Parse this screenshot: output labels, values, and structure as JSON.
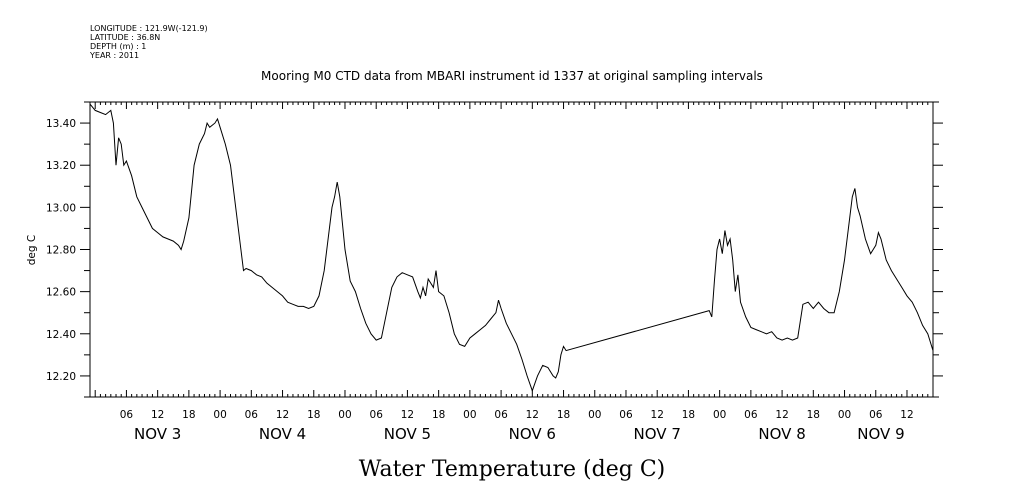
{
  "meta_lines": [
    "LONGITUDE : 121.9W(-121.9)",
    "LATITUDE : 36.8N",
    "DEPTH (m) : 1",
    "YEAR : 2011"
  ],
  "chart_data": {
    "type": "line",
    "title": "Mooring M0 CTD data from MBARI instrument id 1337 at original sampling intervals",
    "xlabel": "Water Temperature (deg C)",
    "ylabel": "deg C",
    "x_units": "hours since Nov 3 00:00, 2011",
    "xlim": [
      -1,
      161
    ],
    "ylim": [
      12.1,
      13.5
    ],
    "yticks": [
      12.2,
      12.4,
      12.6,
      12.8,
      13.0,
      13.2,
      13.4
    ],
    "ytick_labels": [
      "12.20",
      "12.40",
      "12.60",
      "12.80",
      "13.00",
      "13.20",
      "13.40"
    ],
    "xticks": [
      6,
      12,
      18,
      24,
      30,
      36,
      42,
      48,
      54,
      60,
      66,
      72,
      78,
      84,
      90,
      96,
      102,
      108,
      114,
      120,
      126,
      132,
      138,
      144,
      150,
      156
    ],
    "xtick_labels": [
      "06",
      "12",
      "18",
      "00",
      "06",
      "12",
      "18",
      "00",
      "06",
      "12",
      "18",
      "00",
      "06",
      "12",
      "18",
      "00",
      "06",
      "12",
      "18",
      "00",
      "06",
      "12",
      "18",
      "00",
      "06",
      "12"
    ],
    "day_labels": [
      {
        "text": "NOV  3",
        "x": 12
      },
      {
        "text": "NOV  4",
        "x": 36
      },
      {
        "text": "NOV  5",
        "x": 60
      },
      {
        "text": "NOV  6",
        "x": 84
      },
      {
        "text": "NOV  7",
        "x": 108
      },
      {
        "text": "NOV  8",
        "x": 132
      },
      {
        "text": "NOV  9",
        "x": 151
      }
    ],
    "series": [
      {
        "points": [
          [
            -1,
            13.49
          ],
          [
            0,
            13.46
          ],
          [
            1,
            13.45
          ],
          [
            2,
            13.44
          ],
          [
            3,
            13.46
          ],
          [
            3.5,
            13.4
          ],
          [
            4,
            13.2
          ],
          [
            4.5,
            13.33
          ],
          [
            5,
            13.3
          ],
          [
            5.5,
            13.2
          ],
          [
            6,
            13.22
          ],
          [
            7,
            13.15
          ],
          [
            8,
            13.05
          ],
          [
            9,
            13.0
          ],
          [
            10,
            12.95
          ],
          [
            11,
            12.9
          ],
          [
            12,
            12.88
          ],
          [
            13,
            12.86
          ],
          [
            14,
            12.85
          ],
          [
            15,
            12.84
          ],
          [
            16,
            12.82
          ],
          [
            16.5,
            12.8
          ],
          [
            17,
            12.84
          ],
          [
            18,
            12.95
          ],
          [
            19,
            13.2
          ],
          [
            20,
            13.3
          ],
          [
            21,
            13.35
          ],
          [
            21.5,
            13.4
          ],
          [
            22,
            13.38
          ],
          [
            23,
            13.4
          ],
          [
            23.5,
            13.42
          ],
          [
            24,
            13.38
          ],
          [
            25,
            13.3
          ],
          [
            26,
            13.2
          ],
          [
            27,
            13.0
          ],
          [
            28,
            12.8
          ],
          [
            28.5,
            12.7
          ],
          [
            29,
            12.71
          ],
          [
            30,
            12.7
          ],
          [
            31,
            12.68
          ],
          [
            32,
            12.67
          ],
          [
            33,
            12.64
          ],
          [
            34,
            12.62
          ],
          [
            35,
            12.6
          ],
          [
            36,
            12.58
          ],
          [
            37,
            12.55
          ],
          [
            38,
            12.54
          ],
          [
            39,
            12.53
          ],
          [
            40,
            12.53
          ],
          [
            41,
            12.52
          ],
          [
            42,
            12.53
          ],
          [
            43,
            12.58
          ],
          [
            44,
            12.7
          ],
          [
            45,
            12.9
          ],
          [
            45.5,
            13.0
          ],
          [
            46,
            13.05
          ],
          [
            46.5,
            13.12
          ],
          [
            47,
            13.05
          ],
          [
            48,
            12.8
          ],
          [
            49,
            12.65
          ],
          [
            50,
            12.6
          ],
          [
            51,
            12.52
          ],
          [
            52,
            12.45
          ],
          [
            53,
            12.4
          ],
          [
            54,
            12.37
          ],
          [
            55,
            12.38
          ],
          [
            56,
            12.5
          ],
          [
            57,
            12.62
          ],
          [
            58,
            12.67
          ],
          [
            59,
            12.69
          ],
          [
            60,
            12.68
          ],
          [
            61,
            12.67
          ],
          [
            62,
            12.6
          ],
          [
            62.5,
            12.57
          ],
          [
            63,
            12.62
          ],
          [
            63.5,
            12.58
          ],
          [
            64,
            12.66
          ],
          [
            65,
            12.62
          ],
          [
            65.5,
            12.7
          ],
          [
            66,
            12.6
          ],
          [
            67,
            12.58
          ],
          [
            68,
            12.5
          ],
          [
            69,
            12.4
          ],
          [
            70,
            12.35
          ],
          [
            71,
            12.34
          ],
          [
            72,
            12.38
          ],
          [
            73,
            12.4
          ],
          [
            74,
            12.42
          ],
          [
            75,
            12.44
          ],
          [
            76,
            12.47
          ],
          [
            77,
            12.5
          ],
          [
            77.5,
            12.56
          ],
          [
            78,
            12.52
          ],
          [
            79,
            12.45
          ],
          [
            80,
            12.4
          ],
          [
            81,
            12.35
          ],
          [
            82,
            12.28
          ],
          [
            83,
            12.2
          ],
          [
            84,
            12.13
          ],
          [
            85,
            12.2
          ],
          [
            86,
            12.25
          ],
          [
            87,
            12.24
          ],
          [
            88,
            12.2
          ],
          [
            88.5,
            12.19
          ],
          [
            89,
            12.22
          ],
          [
            89.5,
            12.3
          ],
          [
            90,
            12.34
          ],
          [
            90.5,
            12.32
          ],
          [
            118,
            12.51
          ],
          [
            118.5,
            12.48
          ],
          [
            119,
            12.65
          ],
          [
            119.5,
            12.8
          ],
          [
            120,
            12.85
          ],
          [
            120.5,
            12.78
          ],
          [
            121,
            12.89
          ],
          [
            121.5,
            12.82
          ],
          [
            122,
            12.85
          ],
          [
            122.5,
            12.75
          ],
          [
            123,
            12.6
          ],
          [
            123.5,
            12.68
          ],
          [
            124,
            12.55
          ],
          [
            125,
            12.48
          ],
          [
            126,
            12.43
          ],
          [
            127,
            12.42
          ],
          [
            128,
            12.41
          ],
          [
            129,
            12.4
          ],
          [
            130,
            12.41
          ],
          [
            131,
            12.38
          ],
          [
            132,
            12.37
          ],
          [
            133,
            12.38
          ],
          [
            134,
            12.37
          ],
          [
            135,
            12.38
          ],
          [
            136,
            12.54
          ],
          [
            137,
            12.55
          ],
          [
            138,
            12.52
          ],
          [
            139,
            12.55
          ],
          [
            140,
            12.52
          ],
          [
            141,
            12.5
          ],
          [
            142,
            12.5
          ],
          [
            143,
            12.6
          ],
          [
            144,
            12.75
          ],
          [
            145,
            12.95
          ],
          [
            145.5,
            13.05
          ],
          [
            146,
            13.09
          ],
          [
            146.5,
            13.0
          ],
          [
            147,
            12.96
          ],
          [
            148,
            12.85
          ],
          [
            149,
            12.78
          ],
          [
            149.5,
            12.8
          ],
          [
            150,
            12.82
          ],
          [
            150.5,
            12.88
          ],
          [
            151,
            12.85
          ],
          [
            152,
            12.75
          ],
          [
            153,
            12.7
          ],
          [
            154,
            12.66
          ],
          [
            155,
            12.62
          ],
          [
            156,
            12.58
          ],
          [
            157,
            12.55
          ],
          [
            158,
            12.5
          ],
          [
            159,
            12.44
          ],
          [
            160,
            12.4
          ],
          [
            161,
            12.32
          ]
        ]
      }
    ]
  }
}
